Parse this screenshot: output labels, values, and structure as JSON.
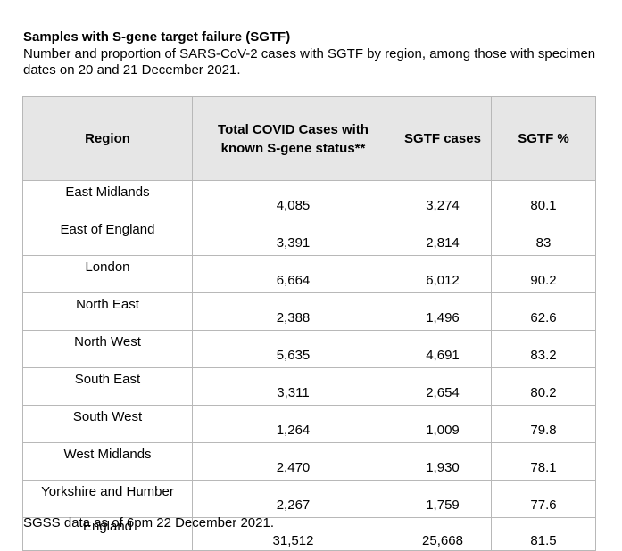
{
  "title": "Samples with S-gene target failure (SGTF)",
  "subtitle": "Number and proportion of SARS-CoV-2 cases with SGTF by region, among those with specimen dates on 20 and 21 December 2021.",
  "table": {
    "headers": {
      "region": "Region",
      "total_line1": "Total COVID Cases with",
      "total_line2": "known S-gene status**",
      "sgtf_cases": "SGTF cases",
      "sgtf_pct": "SGTF %"
    },
    "rows": [
      {
        "region": "East Midlands",
        "total": "4,085",
        "sgtf": "3,274",
        "pct": "80.1"
      },
      {
        "region": "East of England",
        "total": "3,391",
        "sgtf": "2,814",
        "pct": "83"
      },
      {
        "region": "London",
        "total": "6,664",
        "sgtf": "6,012",
        "pct": "90.2"
      },
      {
        "region": "North East",
        "total": "2,388",
        "sgtf": "1,496",
        "pct": "62.6"
      },
      {
        "region": "North West",
        "total": "5,635",
        "sgtf": "4,691",
        "pct": "83.2"
      },
      {
        "region": "South East",
        "total": "3,311",
        "sgtf": "2,654",
        "pct": "80.2"
      },
      {
        "region": "South West",
        "total": "1,264",
        "sgtf": "1,009",
        "pct": "79.8"
      },
      {
        "region": "West Midlands",
        "total": "2,470",
        "sgtf": "1,930",
        "pct": "78.1"
      },
      {
        "region": "Yorkshire and Humber",
        "total": "2,267",
        "sgtf": "1,759",
        "pct": "77.6"
      },
      {
        "region": "England",
        "total": "31,512",
        "sgtf": "25,668",
        "pct": "81.5"
      }
    ]
  },
  "footnote": "SGSS data as of 6pm 22 December 2021."
}
